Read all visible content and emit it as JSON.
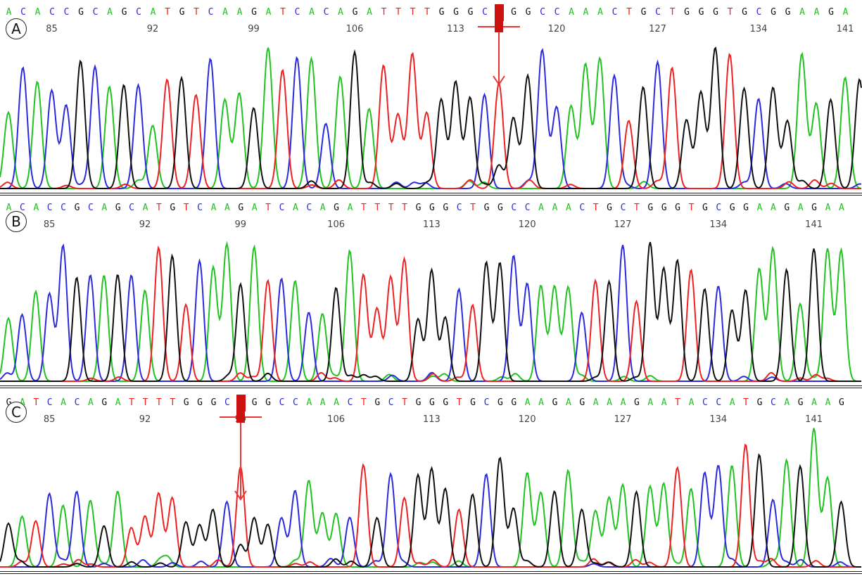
{
  "panels": [
    {
      "label": "A",
      "sequence": "ACACCGCAGCATGTCAAGATCACAGATTTTGGGCNGGCCAAACTGCTGGGTGCGGAAGAG",
      "positions": [
        "85",
        "92",
        "99",
        "106",
        "113",
        "120",
        "127",
        "134",
        "141"
      ],
      "mutation_index": 34
    },
    {
      "label": "B",
      "sequence": "ACACCGCAGCATGTCAAGATCACAGATTTTGGGCTGGCCAAACTGCTGGGTGCGGAAGAGAA",
      "positions": [
        "85",
        "92",
        "99",
        "106",
        "113",
        "120",
        "127",
        "134",
        "141"
      ],
      "mutation_index": null
    },
    {
      "label": "C",
      "sequence": "GATCACAGATTTTGGGCNGGCCAAACTGCTGGGTGCGGAAGAGAAAGAATACCATGCAGAAG",
      "positions": [
        "85",
        "92",
        "99",
        "106",
        "113",
        "120",
        "127",
        "134",
        "141"
      ],
      "mutation_index": 17
    }
  ],
  "colors": {
    "A": "#22c222",
    "C": "#2b2bdd",
    "G": "#111111",
    "T": "#ee2222",
    "marker": "#ee3333"
  }
}
